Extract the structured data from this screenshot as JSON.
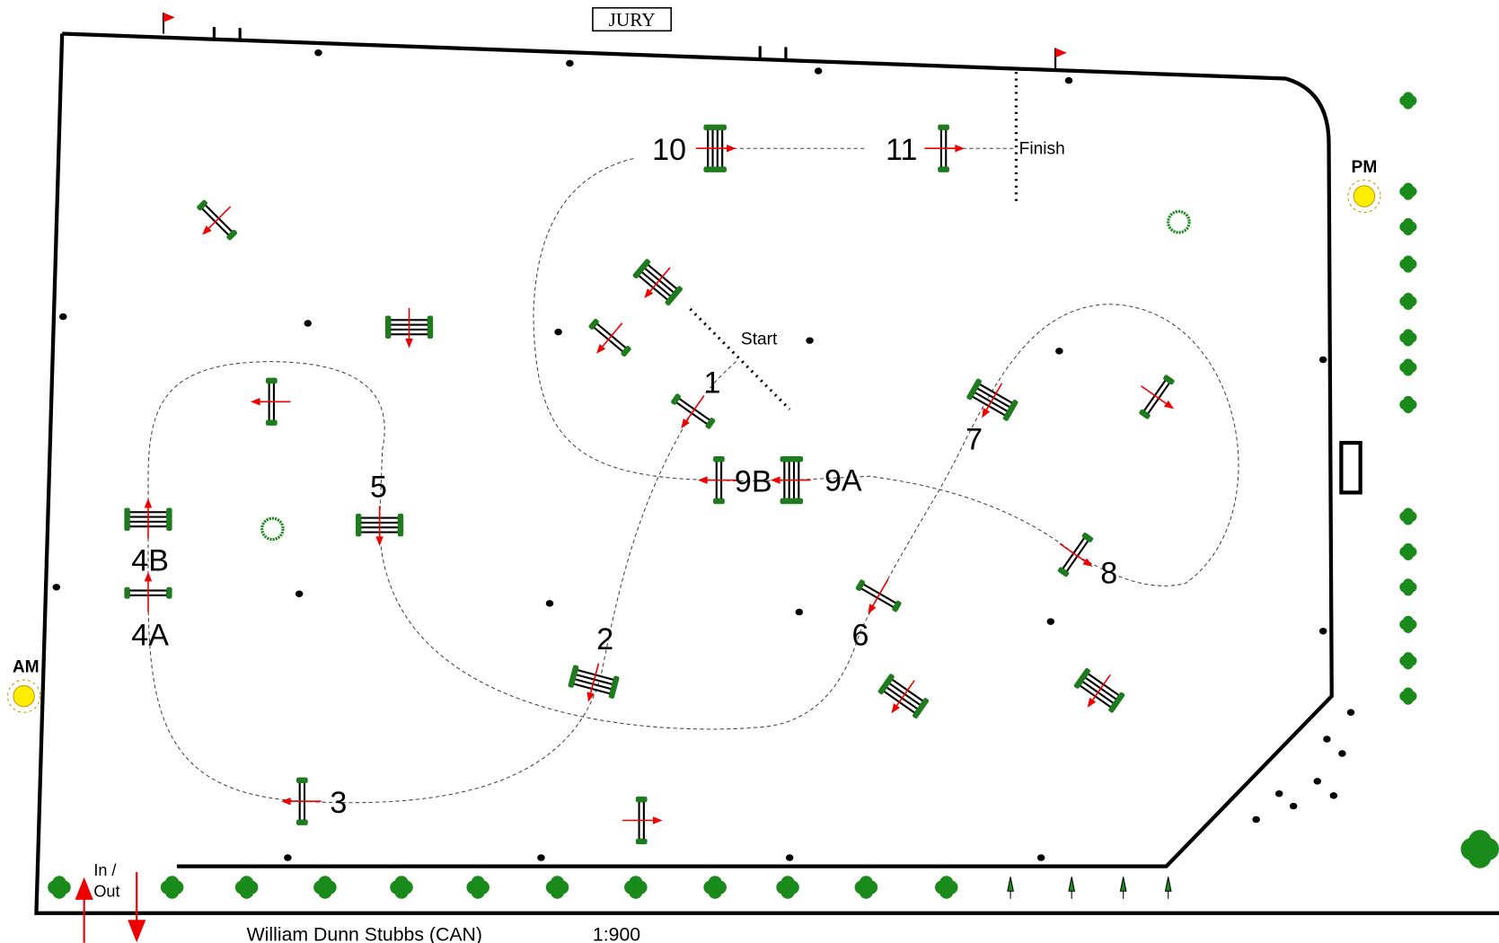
{
  "header": {
    "jury": "JURY"
  },
  "markers": {
    "start": "Start",
    "finish": "Finish"
  },
  "fence_numbers": [
    "1",
    "2",
    "3",
    "4A",
    "4B",
    "5",
    "6",
    "7",
    "8",
    "9A",
    "9B",
    "10",
    "11"
  ],
  "sun": {
    "am": "AM",
    "pm": "PM"
  },
  "entrance": "In / Out",
  "footer": {
    "designer": "William Dunn Stubbs (CAN)",
    "scale": "1:900"
  }
}
